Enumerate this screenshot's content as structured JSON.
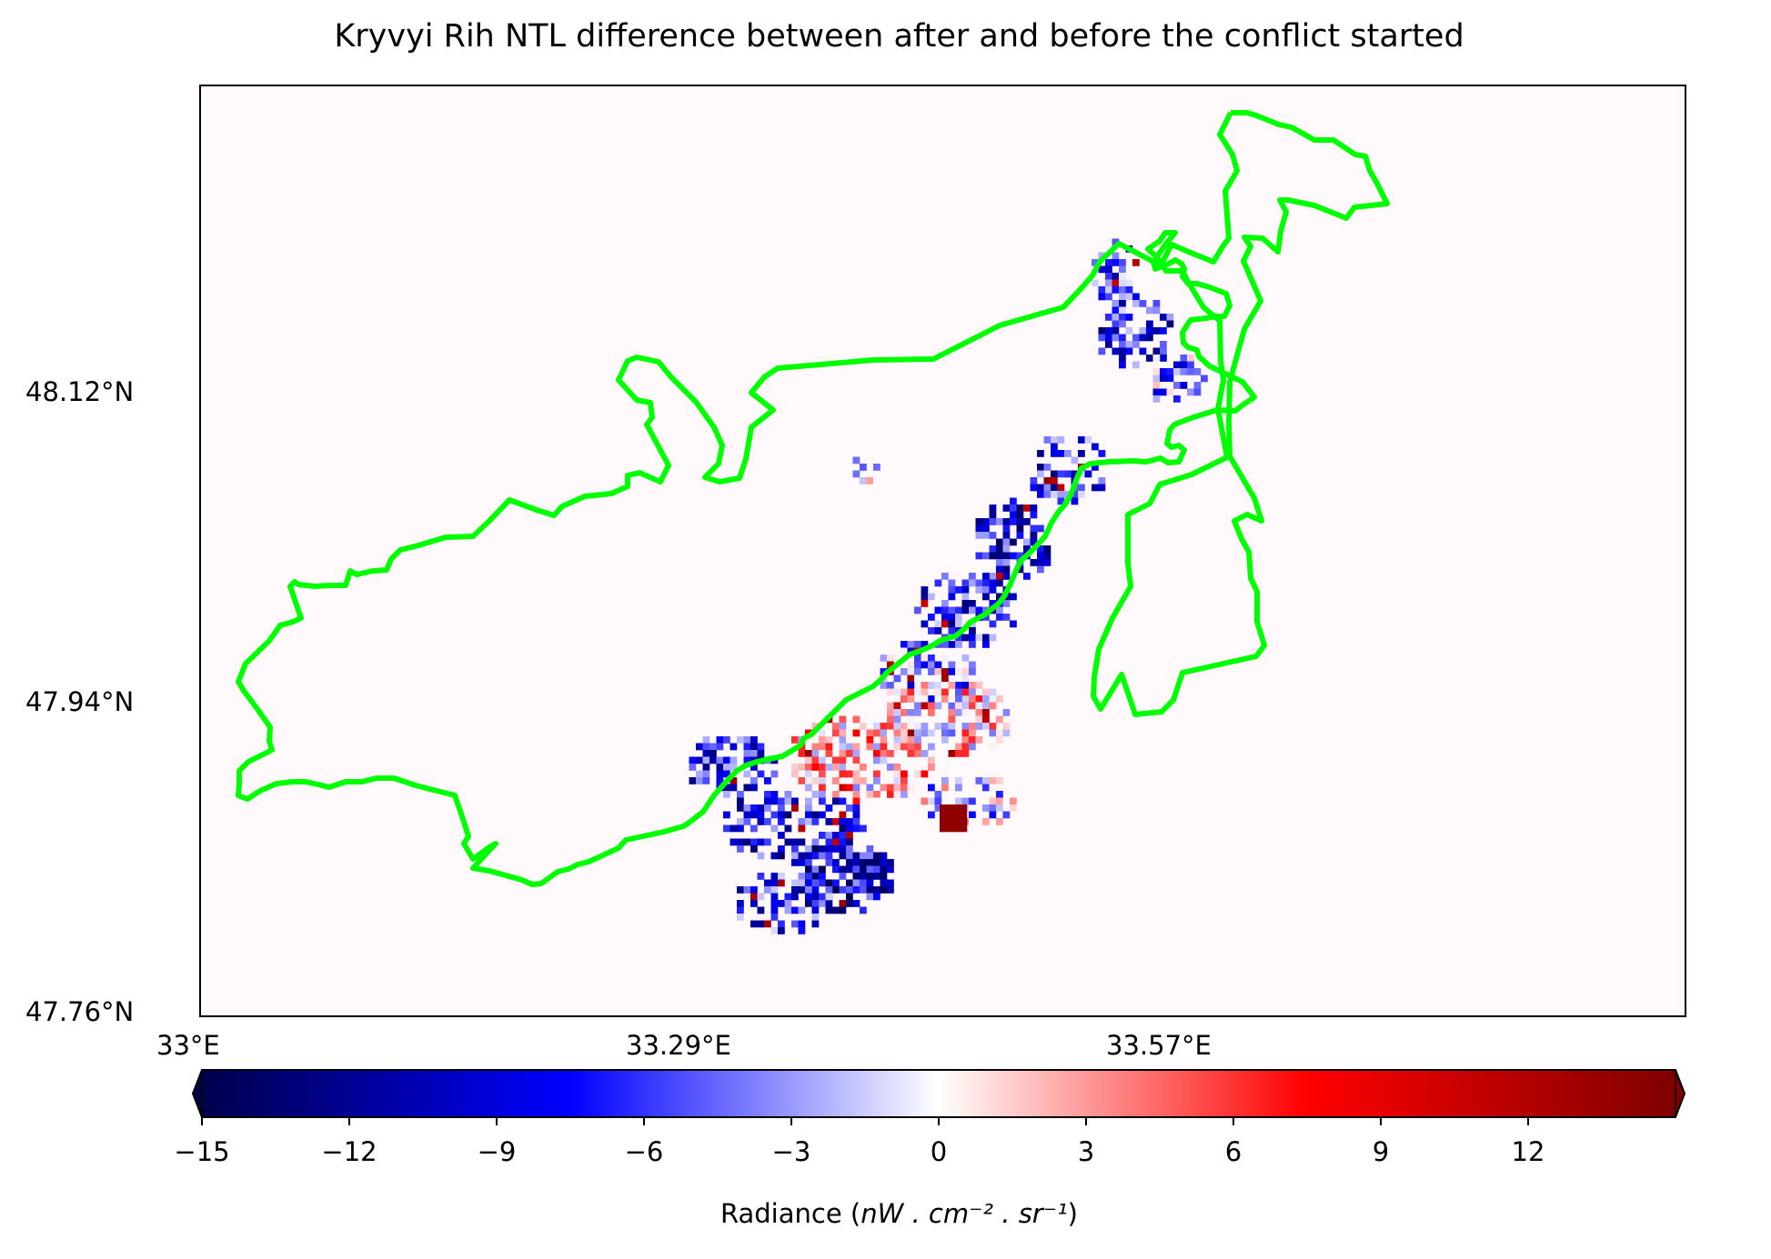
{
  "map": {
    "title": "Kryvyi Rih NTL difference between after and before the conflict started",
    "lat_ticks": [
      "48.12°N",
      "47.94°N",
      "47.76°N"
    ],
    "lon_ticks": [
      "33°E",
      "33.29°E",
      "33.57°E"
    ],
    "boundary_color": "#00ff00",
    "background_color": "#fff9fb"
  },
  "colorbar": {
    "colormap": "seismic",
    "range": [
      -15,
      15
    ],
    "extend": "both",
    "ticks": [
      "−15",
      "−12",
      "−9",
      "−6",
      "−3",
      "0",
      "3",
      "6",
      "9",
      "12"
    ],
    "label_prefix": "Radiance (",
    "label_units": "nW . cm⁻² . sr⁻¹",
    "label_suffix": ")"
  }
}
